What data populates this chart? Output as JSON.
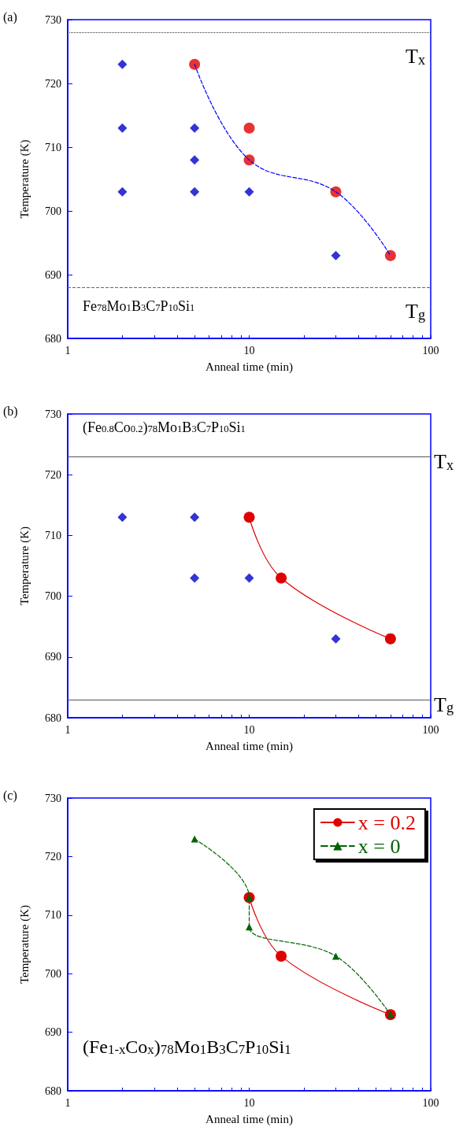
{
  "chart_data": [
    {
      "type": "scatter",
      "xlabel": "Anneal time (min)",
      "ylabel": "Temperature (K)",
      "log": "x",
      "xlim": [
        1,
        100
      ],
      "ylim": [
        680,
        730
      ],
      "xticks": [
        1,
        {
          "value": 2,
          "label": null
        },
        {
          "value": 3,
          "label": null
        },
        {
          "value": 4,
          "label": null
        },
        {
          "value": 5,
          "label": null
        },
        {
          "value": 6,
          "label": null
        },
        {
          "value": 7,
          "label": null
        },
        {
          "value": 8,
          "label": null
        },
        {
          "value": 9,
          "label": null
        },
        10,
        {
          "value": 20,
          "label": null
        },
        {
          "value": 30,
          "label": null
        },
        {
          "value": 40,
          "label": null
        },
        {
          "value": 50,
          "label": null
        },
        {
          "value": 60,
          "label": null
        },
        {
          "value": 70,
          "label": null
        },
        {
          "value": 80,
          "label": null
        },
        {
          "value": 90,
          "label": null
        },
        100
      ],
      "yticks": [
        680,
        690,
        700,
        710,
        720,
        730
      ],
      "legend": false,
      "annotations": [
        "(a)",
        "Fe$_{78}$Mo$_{1}$B$_{3}$C$_{7}$P$_{10}$Si$_{1}$"
      ],
      "ref_lines": [
        {
          "axis": "y",
          "value": 728,
          "label": "T$_{x}$",
          "color": "#333333",
          "line_style": "dotted"
        },
        {
          "axis": "y",
          "value": 688,
          "label": "T$_{g}$",
          "color": "#2e8b2e",
          "line_style": "dashed"
        }
      ],
      "series": [
        {
          "type": "scatter",
          "marker": "diamond",
          "color": "#0000cc",
          "x": [
            2,
            2,
            2,
            5,
            5,
            5,
            10,
            30
          ],
          "values": [
            723,
            713,
            703,
            713,
            708,
            703,
            703,
            693
          ]
        },
        {
          "type": "scatter",
          "marker": "circle",
          "color": "#e00000",
          "x": [
            5,
            10,
            10,
            30,
            60
          ],
          "values": [
            723,
            713,
            708,
            703,
            693
          ]
        },
        {
          "type": "line",
          "marker": "none",
          "line_style": "dashed",
          "color": "#0000ff",
          "x": [
            5,
            10,
            30,
            60
          ],
          "values": [
            723,
            708,
            703,
            693
          ]
        }
      ]
    },
    {
      "type": "scatter",
      "xlabel": "Anneal time (min)",
      "ylabel": "Temperature (K)",
      "log": "x",
      "xlim": [
        1,
        100
      ],
      "ylim": [
        680,
        730
      ],
      "xticks": [
        1,
        {
          "value": 2,
          "label": null
        },
        {
          "value": 3,
          "label": null
        },
        {
          "value": 4,
          "label": null
        },
        {
          "value": 5,
          "label": null
        },
        {
          "value": 6,
          "label": null
        },
        {
          "value": 7,
          "label": null
        },
        {
          "value": 8,
          "label": null
        },
        {
          "value": 9,
          "label": null
        },
        10,
        {
          "value": 20,
          "label": null
        },
        {
          "value": 30,
          "label": null
        },
        {
          "value": 40,
          "label": null
        },
        {
          "value": 50,
          "label": null
        },
        {
          "value": 60,
          "label": null
        },
        {
          "value": 70,
          "label": null
        },
        {
          "value": 80,
          "label": null
        },
        {
          "value": 90,
          "label": null
        },
        100
      ],
      "yticks": [
        680,
        690,
        700,
        710,
        720,
        730
      ],
      "legend": false,
      "annotations": [
        "(b)",
        "(Fe$_{0.8}$Co$_{0.2}$)$_{78}$Mo$_{1}$B$_{3}$C$_{7}$P$_{10}$Si$_{1}$"
      ],
      "ref_lines": [
        {
          "axis": "y",
          "value": 723,
          "label": "T$_{x}$",
          "color": "#555555",
          "line_style": "solid"
        },
        {
          "axis": "y",
          "value": 683,
          "label": "T$_{g}$",
          "color": "#555555",
          "line_style": "solid"
        }
      ],
      "series": [
        {
          "type": "scatter",
          "marker": "diamond",
          "color": "#0000cc",
          "x": [
            2,
            5,
            5,
            10,
            30
          ],
          "values": [
            713,
            713,
            703,
            703,
            693
          ]
        },
        {
          "type": "line",
          "marker": "circle",
          "line_style": "solid",
          "color": "#e00000",
          "x": [
            10,
            15,
            60
          ],
          "values": [
            713,
            703,
            693
          ]
        }
      ]
    },
    {
      "type": "line",
      "xlabel": "Anneal time (min)",
      "ylabel": "Temperature (K)",
      "log": "x",
      "xlim": [
        1,
        100
      ],
      "ylim": [
        680,
        730
      ],
      "xticks": [
        1,
        {
          "value": 2,
          "label": null
        },
        {
          "value": 3,
          "label": null
        },
        {
          "value": 4,
          "label": null
        },
        {
          "value": 5,
          "label": null
        },
        {
          "value": 6,
          "label": null
        },
        {
          "value": 7,
          "label": null
        },
        {
          "value": 8,
          "label": null
        },
        {
          "value": 9,
          "label": null
        },
        10,
        {
          "value": 20,
          "label": null
        },
        {
          "value": 30,
          "label": null
        },
        {
          "value": 40,
          "label": null
        },
        {
          "value": 50,
          "label": null
        },
        {
          "value": 60,
          "label": null
        },
        {
          "value": 70,
          "label": null
        },
        {
          "value": 80,
          "label": null
        },
        {
          "value": 90,
          "label": null
        },
        100
      ],
      "yticks": [
        680,
        690,
        700,
        710,
        720,
        730
      ],
      "legend": "top right",
      "annotations": [
        "(c)",
        "(Fe$_{1-x}$Co$_{x}$)$_{78}$Mo$_{1}$B$_{3}$C$_{7}$P$_{10}$Si$_{1}$"
      ],
      "series": [
        {
          "name": "x = 0.2",
          "marker": "circle",
          "line_style": "solid",
          "color": "#e00000",
          "x": [
            10,
            15,
            60
          ],
          "values": [
            713,
            703,
            693
          ]
        },
        {
          "name": "x = 0",
          "marker": "triangle",
          "line_style": "dashed",
          "color": "#006400",
          "x": [
            5,
            10,
            10,
            30,
            60
          ],
          "values": [
            723,
            713,
            708,
            703,
            693
          ]
        }
      ]
    }
  ]
}
